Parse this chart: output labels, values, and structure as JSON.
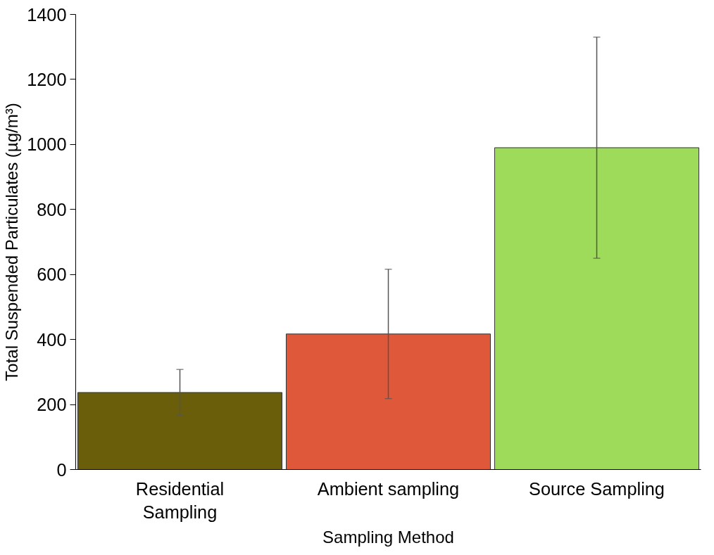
{
  "chart_data": {
    "type": "bar",
    "xlabel": "Sampling Method",
    "ylabel": "Total Suspended Particulates (µg/m³)",
    "categories": [
      "Residential\nSampling",
      "Ambient sampling",
      "Source Sampling"
    ],
    "values": [
      237,
      417,
      990
    ],
    "errors": [
      71,
      199,
      340
    ],
    "colors": [
      "#6b5e0a",
      "#e0583a",
      "#9edb5a"
    ],
    "ylim": [
      0,
      1400
    ],
    "yticks": [
      0,
      200,
      400,
      600,
      800,
      1000,
      1200,
      1400
    ],
    "grid": false
  }
}
